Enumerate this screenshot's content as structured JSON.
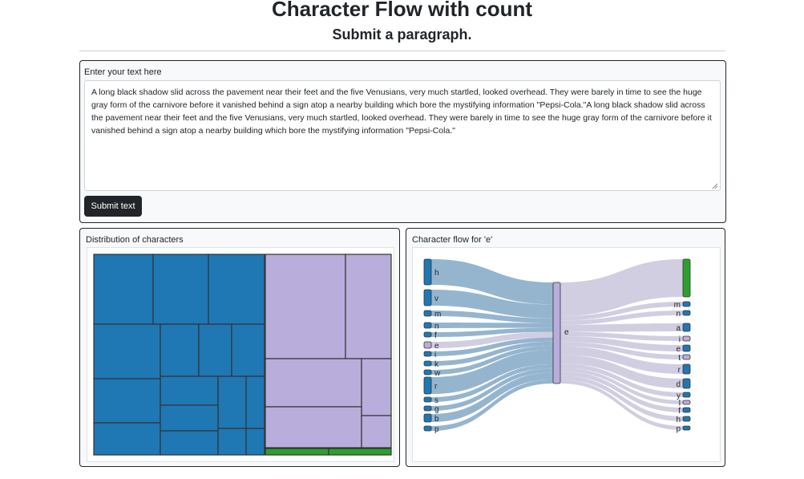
{
  "header": {
    "title": "Character Flow with count",
    "subtitle": "Submit a paragraph."
  },
  "input_card": {
    "label": "Enter your text here",
    "text": "A long black shadow slid across the pavement near their feet and the five Venusians, very much startled, looked overhead. They were barely in time to see the huge gray form of the carnivore before it vanished behind a sign atop a nearby building which bore the mystifying information \"Pepsi-Cola.\"A long black shadow slid across the pavement near their feet and the five Venusians, very much startled, looked overhead. They were barely in time to see the huge gray form of the carnivore before it vanished behind a sign atop a nearby building which bore the mystifying information \"Pepsi-Cola.\"",
    "submit_label": "Submit text"
  },
  "treemap_card": {
    "label": "Distribution of characters",
    "colors": {
      "blue": "#1f77b4",
      "purple": "#b9addb",
      "green": "#2ca02c",
      "border": "#333333"
    }
  },
  "sankey_card": {
    "label": "Character flow for 'e'",
    "center_node": "e",
    "left_nodes": [
      "h",
      "v",
      "m",
      "n",
      "f",
      "e",
      "i",
      "k",
      "w",
      "r",
      "s",
      "g",
      "b",
      "p"
    ],
    "right_nodes": [
      "m",
      "n",
      "a",
      "i",
      "e",
      "t",
      "r",
      "d",
      "y",
      "l",
      "f",
      "h",
      "p"
    ],
    "colors": {
      "node_blue": "#1f77b4",
      "node_purple": "#b9addb",
      "node_green": "#2ca02c",
      "link_in": "#8fb1cc",
      "link_out": "#cfcbe0"
    }
  }
}
